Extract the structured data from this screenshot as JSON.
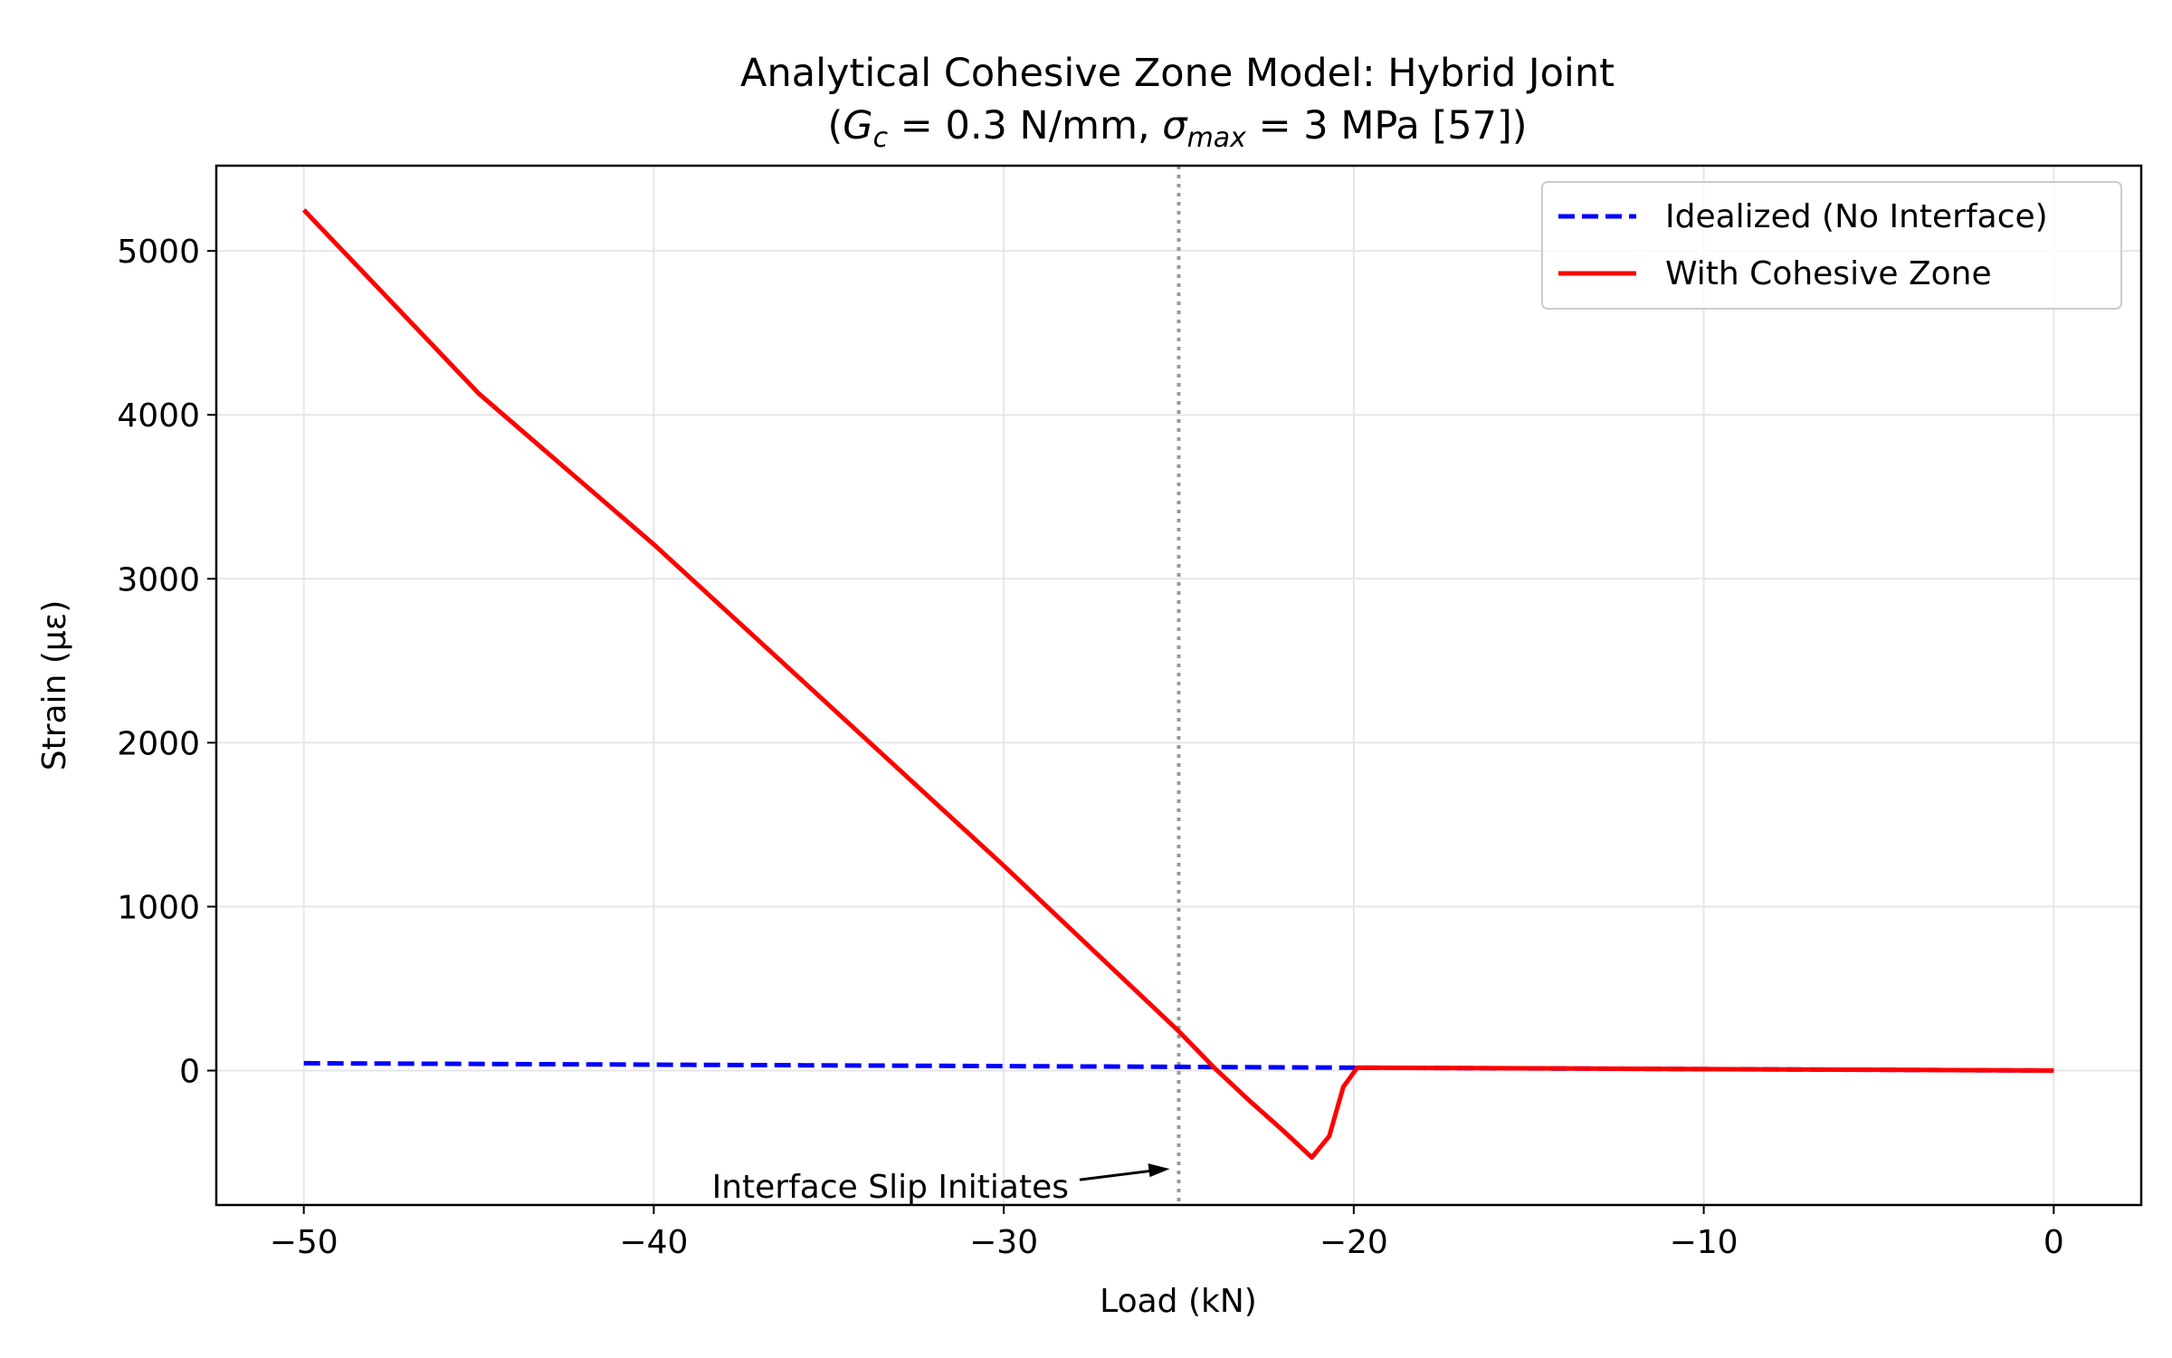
{
  "chart_data": {
    "type": "line",
    "title": {
      "line1": "Analytical Cohesive Zone Model: Hybrid Joint",
      "line2_prefix": "(",
      "gc_symbol": "G",
      "gc_sub": "c",
      "gc_value": " = 0.3 N/mm, ",
      "sigma_symbol": "σ",
      "sigma_sub": "max",
      "sigma_value": " = 3 MPa [57])"
    },
    "xlabel": "Load (kN)",
    "ylabel": "Strain (με)",
    "xlim": [
      -52.5,
      2.5
    ],
    "ylim": [
      -820,
      5520
    ],
    "xticks": [
      -50,
      -40,
      -30,
      -20,
      -10,
      0
    ],
    "xtick_labels": [
      "−50",
      "−40",
      "−30",
      "−20",
      "−10",
      "0"
    ],
    "yticks": [
      0,
      1000,
      2000,
      3000,
      4000,
      5000
    ],
    "ytick_labels": [
      "0",
      "1000",
      "2000",
      "3000",
      "4000",
      "5000"
    ],
    "grid": true,
    "legend_position": "top-right",
    "series": [
      {
        "name": "Idealized (No Interface)",
        "color": "#0000ff",
        "style": "dashed",
        "x": [
          -50,
          -40,
          -30,
          -25,
          -20,
          -10,
          0
        ],
        "y": [
          45,
          36,
          27,
          23,
          18,
          9,
          0
        ]
      },
      {
        "name": "With Cohesive Zone",
        "color": "#ff0000",
        "style": "solid",
        "x": [
          -50,
          -45,
          -40,
          -35,
          -30,
          -25,
          -24,
          -23,
          -22,
          -21.2,
          -20.7,
          -20.3,
          -19.9,
          -15,
          -10,
          -5,
          0
        ],
        "y": [
          5250,
          4130,
          3210,
          2230,
          1250,
          240,
          20,
          -180,
          -370,
          -530,
          -400,
          -100,
          18,
          14,
          9,
          5,
          0
        ]
      }
    ],
    "vline": {
      "x": -25,
      "color": "#999999",
      "style": "dotted"
    },
    "annotation": {
      "text": "Interface Slip Initiates",
      "target_x": -25,
      "target_y": -600
    }
  }
}
